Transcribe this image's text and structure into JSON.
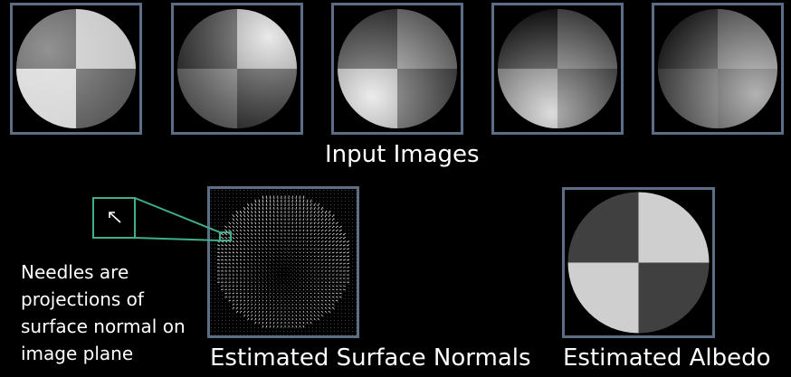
{
  "captions": {
    "input_images": "Input Images",
    "surface_normals": "Estimated Surface Normals",
    "albedo": "Estimated Albedo"
  },
  "note": {
    "lines": [
      "Needles are",
      "projections of",
      "surface normal on",
      "image plane"
    ]
  },
  "colors": {
    "frame_border": "#5b6e86",
    "zoom_callout": "#3fae8a",
    "background": "#000000",
    "albedo_dark": "#404040",
    "albedo_light": "#cfcfcf"
  }
}
